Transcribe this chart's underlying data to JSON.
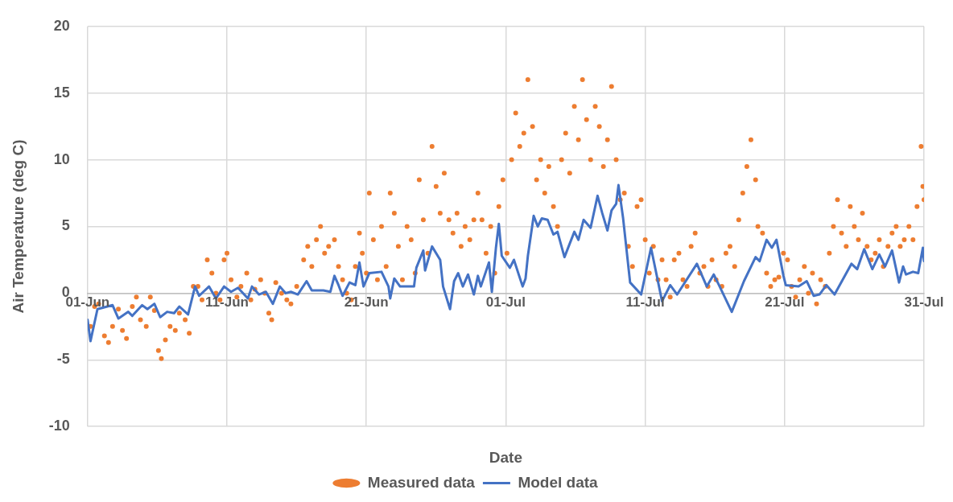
{
  "chart_data": {
    "type": "scatter",
    "xlabel": "Date",
    "ylabel": "Air Temperature (deg C)",
    "xlim": [
      "--06-01",
      "--07-31"
    ],
    "xticks": [
      {
        "value": "--06-01",
        "label": "01-Jun"
      },
      {
        "value": "--06-11",
        "label": "11-Jun"
      },
      {
        "value": "--06-21",
        "label": "21-Jun"
      },
      {
        "value": "--07-01",
        "label": "01-Jul"
      },
      {
        "value": "--07-11",
        "label": "11-Jul"
      },
      {
        "value": "--07-21",
        "label": "21-Jul"
      },
      {
        "value": "--07-31",
        "label": "31-Jul"
      }
    ],
    "ylim": [
      -10,
      20
    ],
    "yticks": [
      -10,
      -5,
      0,
      5,
      10,
      15,
      20
    ],
    "grid": true,
    "legend": "bottom",
    "series": [
      {
        "name": "Measured data",
        "type": "scatter",
        "marker": "circle",
        "color": "#ed7d31",
        "x": [
          "--06-01T05:00",
          "--06-01T12:00",
          "--06-01T19:00",
          "--06-02T05:00",
          "--06-02T12:00",
          "--06-02T19:00",
          "--06-03T05:00",
          "--06-03T12:00",
          "--06-03T19:00",
          "--06-04T05:00",
          "--06-04T12:00",
          "--06-04T19:00",
          "--06-05T05:00",
          "--06-05T12:00",
          "--06-05T19:00",
          "--06-06T02:00",
          "--06-06T07:00",
          "--06-06T14:00",
          "--06-06T22:00",
          "--06-07T07:00",
          "--06-07T14:00",
          "--06-08T00:00",
          "--06-08T07:00",
          "--06-08T14:00",
          "--06-08T22:00",
          "--06-09T05:00",
          "--06-09T14:00",
          "--06-09T22:00",
          "--06-10T05:00",
          "--06-10T12:00",
          "--06-10T19:00",
          "--06-11T00:00",
          "--06-11T07:00",
          "--06-11T17:00",
          "--06-12T00:00",
          "--06-12T10:00",
          "--06-12T17:00",
          "--06-13T00:00",
          "--06-13T10:00",
          "--06-13T17:00",
          "--06-14T00:00",
          "--06-14T05:00",
          "--06-14T12:00",
          "--06-14T22:00",
          "--06-15T07:00",
          "--06-15T14:00",
          "--06-16T00:00",
          "--06-16T12:00",
          "--06-16T19:00",
          "--06-17T02:00",
          "--06-17T10:00",
          "--06-17T17:00",
          "--06-18T00:00",
          "--06-18T07:00",
          "--06-18T17:00",
          "--06-19T00:00",
          "--06-19T07:00",
          "--06-19T14:00",
          "--06-19T22:00",
          "--06-20T05:00",
          "--06-20T12:00",
          "--06-20T17:00",
          "--06-21T00:00",
          "--06-21T05:00",
          "--06-21T12:00",
          "--06-21T19:00",
          "--06-22T02:00",
          "--06-22T10:00",
          "--06-22T17:00",
          "--06-23T00:00",
          "--06-23T07:00",
          "--06-23T14:00",
          "--06-23T22:00",
          "--06-24T05:00",
          "--06-24T12:00",
          "--06-24T19:00",
          "--06-25T02:00",
          "--06-25T10:00",
          "--06-25T17:00",
          "--06-26T00:00",
          "--06-26T07:00",
          "--06-26T14:00",
          "--06-26T22:00",
          "--06-27T05:00",
          "--06-27T12:00",
          "--06-27T19:00",
          "--06-28T02:00",
          "--06-28T10:00",
          "--06-28T17:00",
          "--06-29T00:00",
          "--06-29T07:00",
          "--06-29T14:00",
          "--06-29T22:00",
          "--06-30T05:00",
          "--06-30T12:00",
          "--06-30T19:00",
          "--07-01T02:00",
          "--07-01T10:00",
          "--07-01T17:00",
          "--07-02T00:00",
          "--07-02T07:00",
          "--07-02T14:00",
          "--07-02T22:00",
          "--07-03T05:00",
          "--07-03T12:00",
          "--07-03T19:00",
          "--07-04T02:00",
          "--07-04T10:00",
          "--07-04T17:00",
          "--07-05T00:00",
          "--07-05T07:00",
          "--07-05T14:00",
          "--07-05T22:00",
          "--07-06T05:00",
          "--07-06T12:00",
          "--07-06T19:00",
          "--07-07T02:00",
          "--07-07T10:00",
          "--07-07T17:00",
          "--07-08T00:00",
          "--07-08T07:00",
          "--07-08T14:00",
          "--07-08T22:00",
          "--07-09T05:00",
          "--07-09T12:00",
          "--07-09T19:00",
          "--07-10T02:00",
          "--07-10T10:00",
          "--07-10T17:00",
          "--07-11T00:00",
          "--07-11T07:00",
          "--07-11T14:00",
          "--07-11T22:00",
          "--07-12T05:00",
          "--07-12T12:00",
          "--07-12T19:00",
          "--07-13T02:00",
          "--07-13T10:00",
          "--07-13T17:00",
          "--07-14T00:00",
          "--07-14T07:00",
          "--07-14T14:00",
          "--07-14T22:00",
          "--07-15T05:00",
          "--07-15T12:00",
          "--07-15T19:00",
          "--07-16T02:00",
          "--07-16T12:00",
          "--07-16T19:00",
          "--07-17T02:00",
          "--07-17T10:00",
          "--07-17T17:00",
          "--07-18T00:00",
          "--07-18T07:00",
          "--07-18T14:00",
          "--07-18T22:00",
          "--07-19T02:00",
          "--07-19T10:00",
          "--07-19T17:00",
          "--07-20T00:00",
          "--07-20T07:00",
          "--07-20T14:00",
          "--07-20T22:00",
          "--07-21T05:00",
          "--07-21T12:00",
          "--07-21T19:00",
          "--07-22T02:00",
          "--07-22T10:00",
          "--07-22T17:00",
          "--07-23T00:00",
          "--07-23T07:00",
          "--07-23T14:00",
          "--07-23T22:00",
          "--07-24T05:00",
          "--07-24T12:00",
          "--07-24T19:00",
          "--07-25T02:00",
          "--07-25T10:00",
          "--07-25T17:00",
          "--07-26T00:00",
          "--07-26T07:00",
          "--07-26T14:00",
          "--07-26T22:00",
          "--07-27T05:00",
          "--07-27T12:00",
          "--07-27T19:00",
          "--07-28T02:00",
          "--07-28T10:00",
          "--07-28T17:00",
          "--07-29T00:00",
          "--07-29T07:00",
          "--07-29T14:00",
          "--07-29T22:00",
          "--07-30T05:00",
          "--07-30T12:00",
          "--07-30T19:00",
          "--07-30T22:00",
          "--07-31T00:00"
        ],
        "values": [
          -2.5,
          -1.0,
          -0.8,
          -3.2,
          -3.7,
          -2.5,
          -1.2,
          -2.8,
          -3.4,
          -1.0,
          -0.3,
          -2.0,
          -2.5,
          -0.3,
          -1.3,
          -4.3,
          -4.9,
          -3.5,
          -2.5,
          -2.8,
          -1.5,
          -2.0,
          -3.0,
          0.5,
          0.5,
          -0.5,
          2.5,
          1.5,
          0,
          -0.5,
          2.5,
          3.0,
          1.0,
          -0.3,
          0.5,
          1.5,
          -0.5,
          0.3,
          1.0,
          0.0,
          -1.5,
          -2.0,
          0.8,
          0,
          -0.5,
          -0.8,
          0.5,
          2.5,
          3.5,
          2.0,
          4.0,
          5.0,
          3.0,
          3.5,
          4.0,
          2.0,
          1.0,
          0,
          -0.5,
          2.0,
          4.5,
          3.0,
          1.5,
          7.5,
          4.0,
          1.0,
          5.0,
          2.0,
          7.5,
          6.0,
          3.5,
          1.0,
          5.0,
          4.0,
          1.5,
          8.5,
          5.5,
          3.0,
          11.0,
          8.0,
          6.0,
          9.0,
          5.5,
          4.5,
          6.0,
          3.5,
          5.0,
          4.0,
          5.5,
          7.5,
          5.5,
          3.0,
          5.0,
          1.5,
          6.5,
          8.5,
          3.0,
          10.0,
          13.5,
          11.0,
          12.0,
          16.0,
          12.5,
          8.5,
          10.0,
          7.5,
          9.5,
          6.5,
          5.0,
          10.0,
          12.0,
          9.0,
          14.0,
          11.5,
          16.0,
          13.0,
          10.0,
          14.0,
          12.5,
          9.5,
          11.5,
          15.5,
          10.0,
          7.0,
          7.5,
          3.5,
          2.0,
          6.5,
          7.0,
          4.0,
          1.5,
          3.5,
          1.0,
          2.5,
          1.0,
          -0.3,
          2.5,
          3.0,
          1.0,
          0.5,
          3.5,
          4.5,
          1.5,
          2.0,
          0.5,
          2.5,
          1.0,
          0.5,
          3.0,
          3.5,
          2.0,
          5.5,
          7.5,
          9.5,
          11.5,
          8.5,
          5.0,
          4.5,
          1.5,
          0.5,
          1.0,
          1.2,
          3.0,
          2.5,
          0.5,
          -0.3,
          1.0,
          2.0,
          0.0,
          1.5,
          -0.8,
          1.0,
          0.5,
          3.0,
          5.0,
          7.0,
          4.5,
          3.5,
          6.5,
          5.0,
          4.0,
          6.0,
          3.5,
          2.5,
          3.0,
          4.0,
          2.0,
          3.5,
          4.5,
          5.0,
          3.5,
          4.0,
          5.0,
          4.0,
          6.5,
          11.0,
          8.0,
          7.0
        ]
      },
      {
        "name": "Model data",
        "type": "line",
        "marker": "none",
        "line_style": "solid",
        "color": "#4472c4",
        "x": [
          "--06-01T00:00",
          "--06-01T05:00",
          "--06-01T17:00",
          "--06-02T19:00",
          "--06-03T05:00",
          "--06-03T22:00",
          "--06-04T05:00",
          "--06-04T22:00",
          "--06-05T07:00",
          "--06-05T19:00",
          "--06-06T05:00",
          "--06-06T17:00",
          "--06-07T05:00",
          "--06-07T14:00",
          "--06-08T05:00",
          "--06-08T17:00",
          "--06-09T00:00",
          "--06-09T17:00",
          "--06-10T05:00",
          "--06-10T19:00",
          "--06-11T07:00",
          "--06-11T19:00",
          "--06-12T12:00",
          "--06-12T19:00",
          "--06-13T07:00",
          "--06-13T19:00",
          "--06-14T07:00",
          "--06-14T19:00",
          "--06-15T05:00",
          "--06-15T14:00",
          "--06-16T02:00",
          "--06-16T17:00",
          "--06-17T02:00",
          "--06-17T22:00",
          "--06-18T10:00",
          "--06-18T17:00",
          "--06-19T00:00",
          "--06-19T07:00",
          "--06-19T19:00",
          "--06-20T05:00",
          "--06-20T12:00",
          "--06-20T19:00",
          "--06-21T05:00",
          "--06-22T02:00",
          "--06-22T14:00",
          "--06-22T17:00",
          "--06-23T00:00",
          "--06-23T10:00",
          "--06-24T10:00",
          "--06-24T14:00",
          "--06-25T02:00",
          "--06-25T05:00",
          "--06-25T17:00",
          "--06-26T07:00",
          "--06-26T12:00",
          "--06-27T00:00",
          "--06-27T07:00",
          "--06-27T14:00",
          "--06-27T22:00",
          "--06-28T07:00",
          "--06-28T17:00",
          "--06-29T00:00",
          "--06-29T05:00",
          "--06-29T19:00",
          "--06-30T00:00",
          "--06-30T07:00",
          "--06-30T12:00",
          "--06-30T17:00",
          "--07-01T07:00",
          "--07-01T14:00",
          "--07-02T05:00",
          "--07-02T10:00",
          "--07-02T14:00",
          "--07-03T00:00",
          "--07-03T07:00",
          "--07-03T14:00",
          "--07-04T00:00",
          "--07-04T10:00",
          "--07-04T17:00",
          "--07-05T05:00",
          "--07-05T22:00",
          "--07-06T05:00",
          "--07-06T14:00",
          "--07-07T02:00",
          "--07-07T14:00",
          "--07-07T22:00",
          "--07-08T07:00",
          "--07-08T14:00",
          "--07-08T22:00",
          "--07-09T02:00",
          "--07-09T10:00",
          "--07-09T22:00",
          "--07-10T17:00",
          "--07-11T10:00",
          "--07-12T05:00",
          "--07-12T19:00",
          "--07-13T07:00",
          "--07-14T17:00",
          "--07-15T10:00",
          "--07-15T22:00",
          "--07-16T07:00",
          "--07-17T05:00",
          "--07-18T02:00",
          "--07-18T22:00",
          "--07-19T05:00",
          "--07-19T17:00",
          "--07-20T02:00",
          "--07-20T10:00",
          "--07-20T22:00",
          "--07-21T02:00",
          "--07-22T00:00",
          "--07-22T14:00",
          "--07-23T02:00",
          "--07-23T12:00",
          "--07-24T00:00",
          "--07-24T14:00",
          "--07-25T19:00",
          "--07-26T05:00",
          "--07-26T17:00",
          "--07-27T07:00",
          "--07-27T19:00",
          "--07-28T05:00",
          "--07-28T17:00",
          "--07-29T05:00",
          "--07-29T12:00",
          "--07-29T17:00",
          "--07-30T05:00",
          "--07-30T14:00",
          "--07-30T22:00",
          "--07-31T00:00"
        ],
        "values": [
          -2.0,
          -3.6,
          -1.2,
          -0.9,
          -1.9,
          -1.4,
          -1.7,
          -0.9,
          -1.2,
          -0.8,
          -1.8,
          -1.4,
          -1.5,
          -1.0,
          -1.6,
          0.5,
          -0.2,
          0.5,
          -0.4,
          0.5,
          0.1,
          0.4,
          -0.4,
          0.5,
          -0.1,
          0.1,
          -0.8,
          0.5,
          0,
          0.1,
          -0.1,
          0.9,
          0.2,
          0.2,
          0.1,
          1.3,
          0.6,
          -0.2,
          0.8,
          0.6,
          2.3,
          0.5,
          1.5,
          1.6,
          0.5,
          -0.4,
          1.1,
          0.5,
          0.5,
          1.9,
          3.2,
          1.7,
          3.5,
          2.5,
          0.5,
          -1.2,
          0.9,
          1.5,
          0.5,
          1.4,
          -0.1,
          1.3,
          0.5,
          2.3,
          0.1,
          3.4,
          5.2,
          2.8,
          1.9,
          2.5,
          0.5,
          1.1,
          2.8,
          5.8,
          5.0,
          5.6,
          5.5,
          4.4,
          4.6,
          2.7,
          4.6,
          4.0,
          5.5,
          4.9,
          7.3,
          6.0,
          4.7,
          6.2,
          6.7,
          8.1,
          5.6,
          0.8,
          -0.1,
          3.4,
          -0.6,
          0.6,
          -0.1,
          2.2,
          0.5,
          1.4,
          0.6,
          -1.4,
          0.9,
          2.7,
          2.4,
          4.0,
          3.4,
          4.0,
          1.3,
          0.6,
          0.5,
          0.9,
          -0.2,
          -0.1,
          0.6,
          -0.1,
          2.2,
          1.8,
          3.3,
          1.8,
          2.9,
          2.0,
          3.2,
          0.8,
          2.0,
          1.4,
          1.6,
          1.5,
          3.4,
          2.4
        ]
      }
    ]
  }
}
